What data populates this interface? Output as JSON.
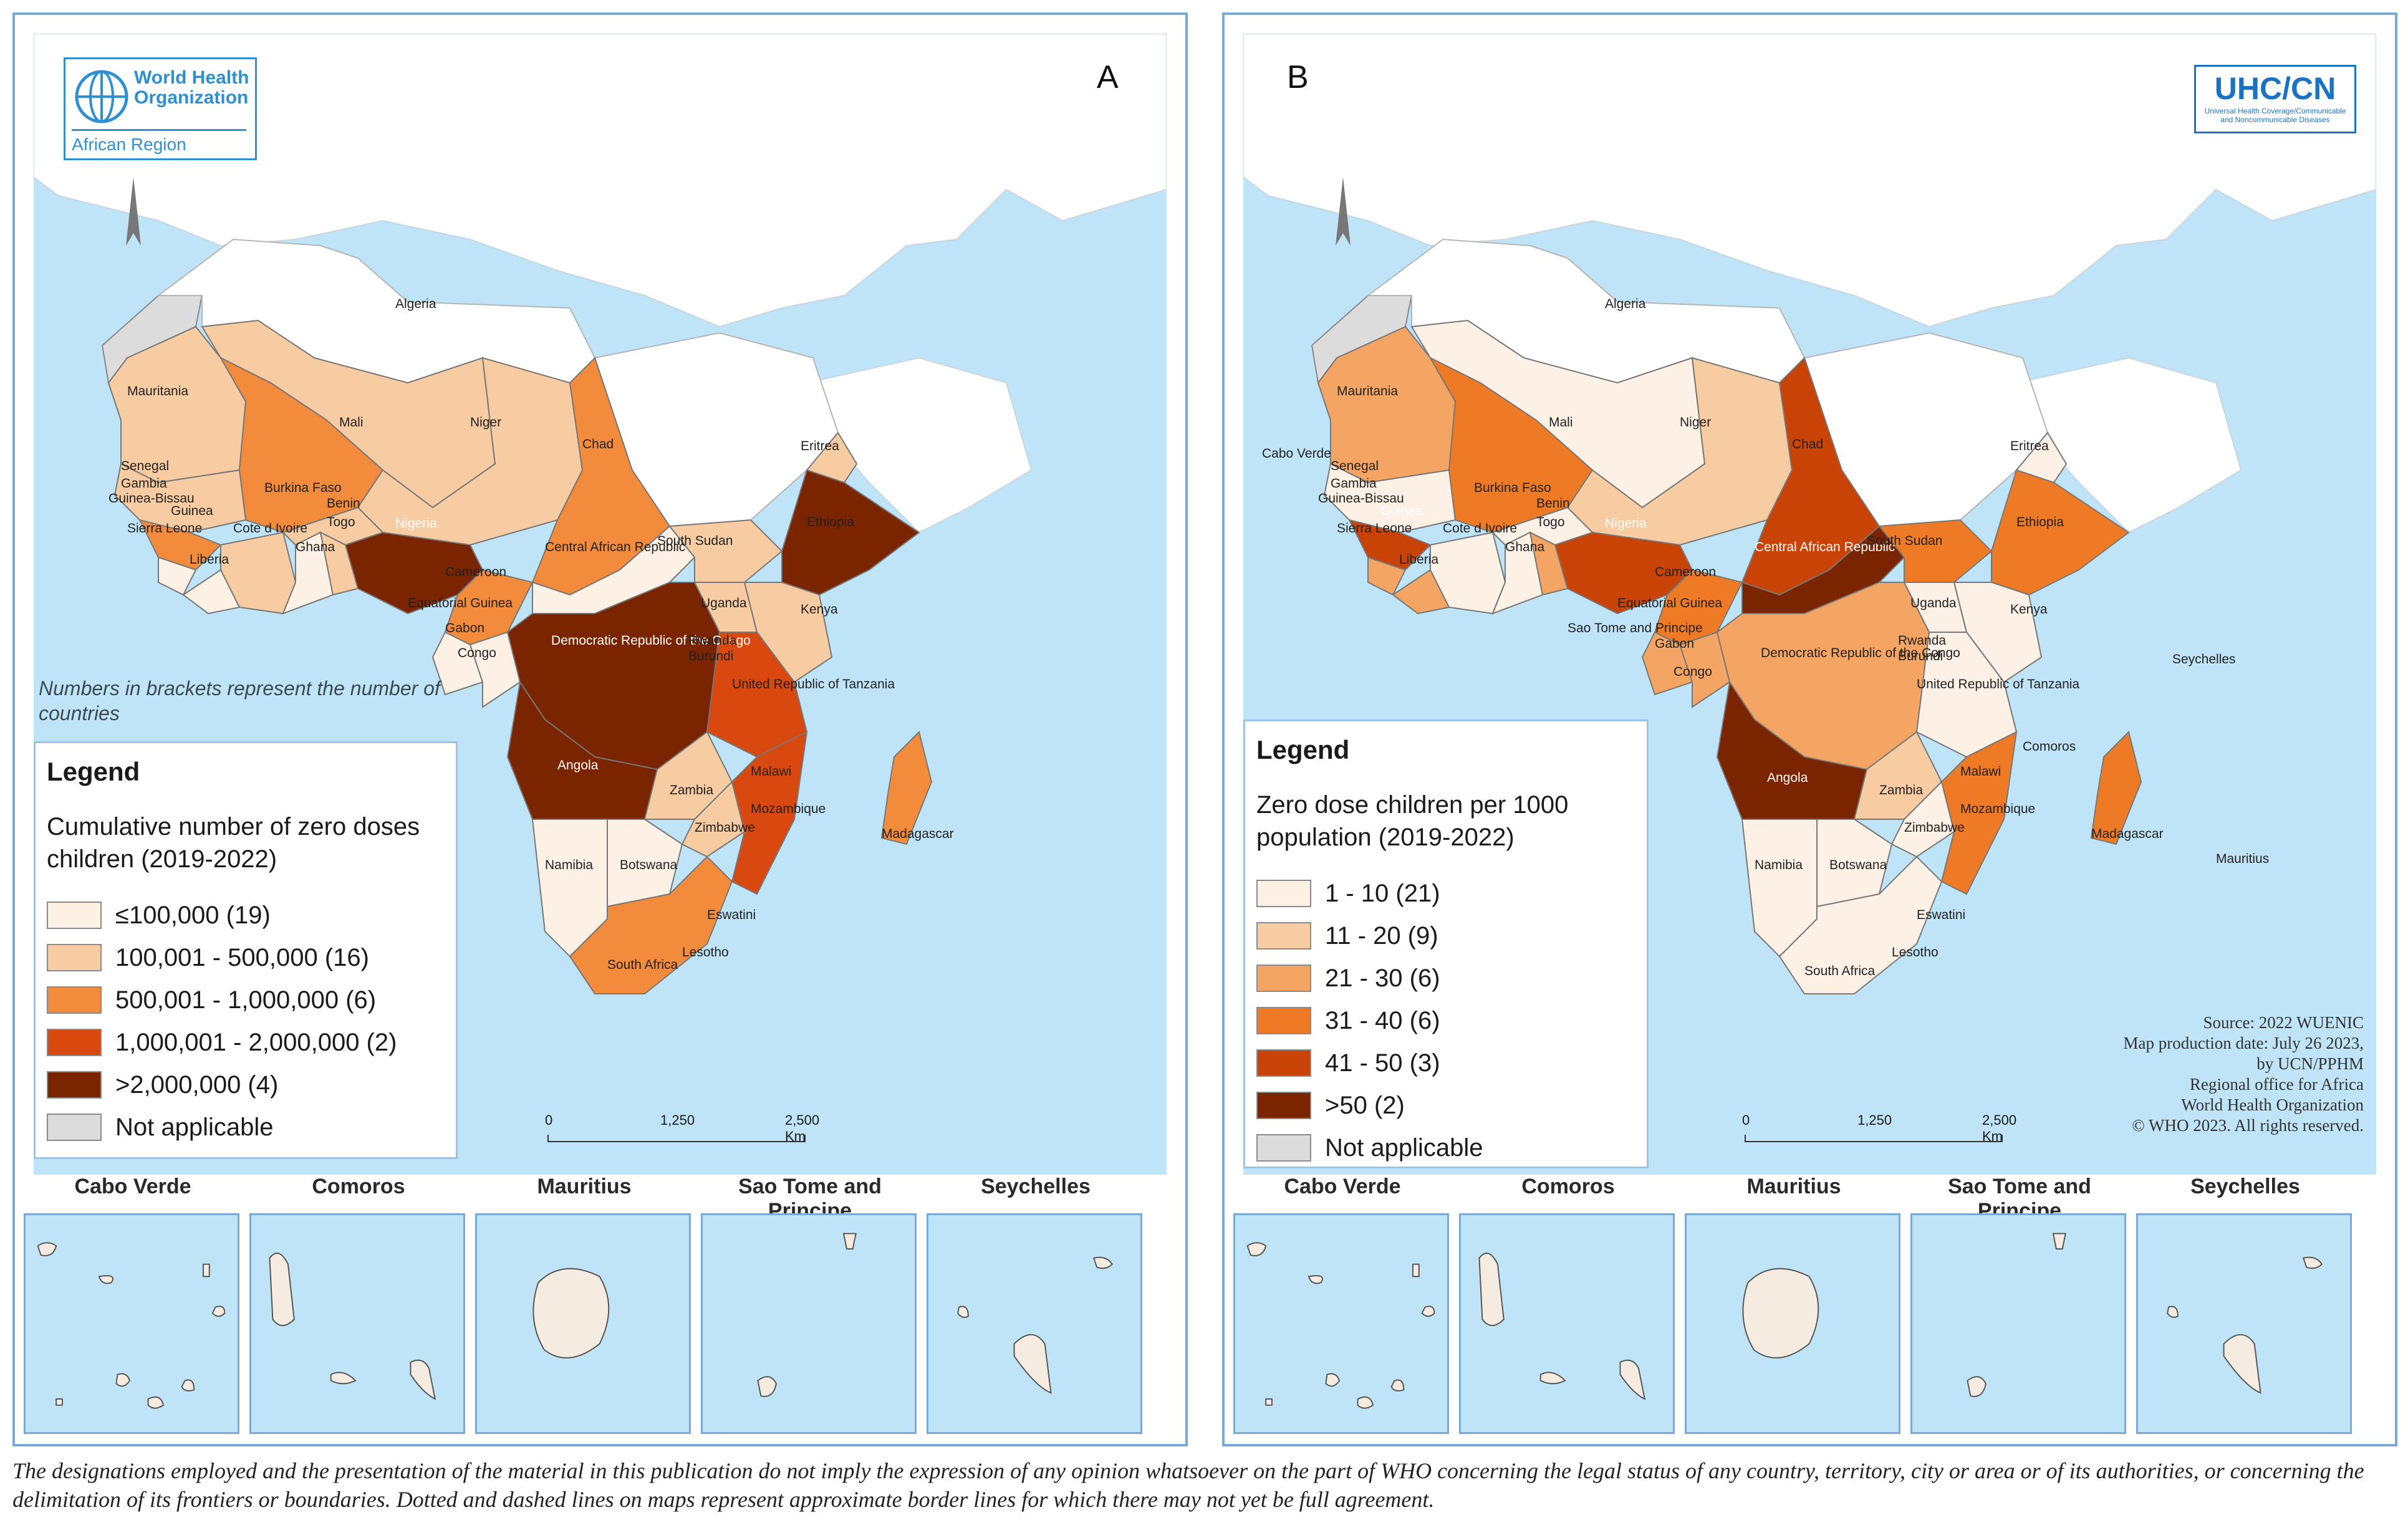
{
  "panel_a": {
    "letter": "A",
    "logo": {
      "line1": "World Health",
      "line2": "Organization",
      "line3": "African Region"
    },
    "note": "Numbers in brackets represent the number of countries",
    "legend": {
      "title": "Legend",
      "subtitle": "Cumulative number of zero doses children (2019-2022)",
      "items": [
        {
          "label": "≤100,000 (19)",
          "color": "#fdf0e4"
        },
        {
          "label": "100,001 - 500,000 (16)",
          "color": "#f8cca2"
        },
        {
          "label": "500,001 - 1,000,000 (6)",
          "color": "#f28b3c"
        },
        {
          "label": "1,000,001 - 2,000,000 (2)",
          "color": "#d9480f"
        },
        {
          "label": ">2,000,000 (4)",
          "color": "#7a2400"
        },
        {
          "label": "Not applicable",
          "color": "#dcdcdc"
        }
      ]
    },
    "scale": {
      "t0": "0",
      "t1": "1,250",
      "t2": "2,500 Km"
    },
    "countries": {
      "algeria": "Algeria",
      "mauritania": "Mauritania",
      "mali": "Mali",
      "niger": "Niger",
      "chad": "Chad",
      "senegal": "Senegal",
      "gambia": "Gambia",
      "guinea_bissau": "Guinea-Bissau",
      "guinea": "Guinea",
      "sierra_leone": "Sierra Leone",
      "liberia": "Liberia",
      "cote_divoire": "Cote d Ivoire",
      "ghana": "Ghana",
      "togo": "Togo",
      "benin": "Benin",
      "burkina": "Burkina Faso",
      "nigeria": "Nigeria",
      "cameroon": "Cameroon",
      "car": "Central African Republic",
      "south_sudan": "South Sudan",
      "eritrea": "Eritrea",
      "ethiopia": "Ethiopia",
      "eq_guinea": "Equatorial Guinea",
      "gabon": "Gabon",
      "congo": "Congo",
      "drc": "Democratic Republic of the Congo",
      "uganda": "Uganda",
      "kenya": "Kenya",
      "rwanda": "Rwanda",
      "burundi": "Burundi",
      "tanzania": "United Republic of Tanzania",
      "angola": "Angola",
      "zambia": "Zambia",
      "malawi": "Malawi",
      "mozambique": "Mozambique",
      "zimbabwe": "Zimbabwe",
      "namibia": "Namibia",
      "botswana": "Botswana",
      "madagascar": "Madagascar",
      "south_africa": "South Africa",
      "eswatini": "Eswatini",
      "lesotho": "Lesotho"
    }
  },
  "panel_b": {
    "letter": "B",
    "logo": {
      "title": "UHC/CN",
      "line1": "Universal Health Coverage/Communicable",
      "line2": "and Noncommunicable Diseases"
    },
    "legend": {
      "title": "Legend",
      "subtitle": "Zero dose children per 1000 population (2019-2022)",
      "items": [
        {
          "label": "1 - 10 (21)",
          "color": "#fdf0e4"
        },
        {
          "label": "11 - 20 (9)",
          "color": "#f8cca2"
        },
        {
          "label": "21 - 30 (6)",
          "color": "#f4a563"
        },
        {
          "label": "31 - 40 (6)",
          "color": "#ef7a26"
        },
        {
          "label": "41 - 50 (3)",
          "color": "#c94206"
        },
        {
          "label": ">50 (2)",
          "color": "#7a2400"
        },
        {
          "label": "Not applicable",
          "color": "#dcdcdc"
        }
      ]
    },
    "scale": {
      "t0": "0",
      "t1": "1,250",
      "t2": "2,500 Km"
    },
    "source": [
      "Source: 2022 WUENIC",
      "Map production date: July 26 2023,",
      "by UCN/PPHM",
      "Regional office for Africa",
      "World Health Organization",
      "© WHO 2023. All rights reserved."
    ],
    "countries": {
      "algeria": "Algeria",
      "mauritania": "Mauritania",
      "mali": "Mali",
      "niger": "Niger",
      "chad": "Chad",
      "cabo_verde": "Cabo Verde",
      "senegal": "Senegal",
      "gambia": "Gambia",
      "guinea_bissau": "Guinea-Bissau",
      "guinea": "Guinea",
      "sierra_leone": "Sierra Leone",
      "liberia": "Liberia",
      "cote_divoire": "Cote d Ivoire",
      "ghana": "Ghana",
      "togo": "Togo",
      "benin": "Benin",
      "burkina": "Burkina Faso",
      "nigeria": "Nigeria",
      "cameroon": "Cameroon",
      "car": "Central African Republic",
      "south_sudan": "South Sudan",
      "eritrea": "Eritrea",
      "ethiopia": "Ethiopia",
      "sao_tome": "Sao Tome and Principe",
      "eq_guinea": "Equatorial Guinea",
      "gabon": "Gabon",
      "congo": "Congo",
      "drc": "Democratic Republic of the Congo",
      "uganda": "Uganda",
      "kenya": "Kenya",
      "rwanda": "Rwanda",
      "burundi": "Burundi",
      "tanzania": "United Republic of Tanzania",
      "seychelles": "Seychelles",
      "comoros": "Comoros",
      "angola": "Angola",
      "zambia": "Zambia",
      "malawi": "Malawi",
      "mozambique": "Mozambique",
      "zimbabwe": "Zimbabwe",
      "madagascar": "Madagascar",
      "mauritius": "Mauritius",
      "namibia": "Namibia",
      "botswana": "Botswana",
      "south_africa": "South Africa",
      "eswatini": "Eswatini",
      "lesotho": "Lesotho"
    }
  },
  "insets": [
    "Cabo Verde",
    "Comoros",
    "Mauritius",
    "Sao Tome and Principe",
    "Seychelles"
  ],
  "disclaimer": "The designations employed and the presentation of the material in this publication do not imply the expression of any opinion whatsoever on the part of WHO concerning the legal status of any country, territory, city or area or of its authorities, or concerning the delimitation of its frontiers or boundaries. Dotted and dashed lines on maps represent approximate border lines for which there may not yet be full agreement."
}
